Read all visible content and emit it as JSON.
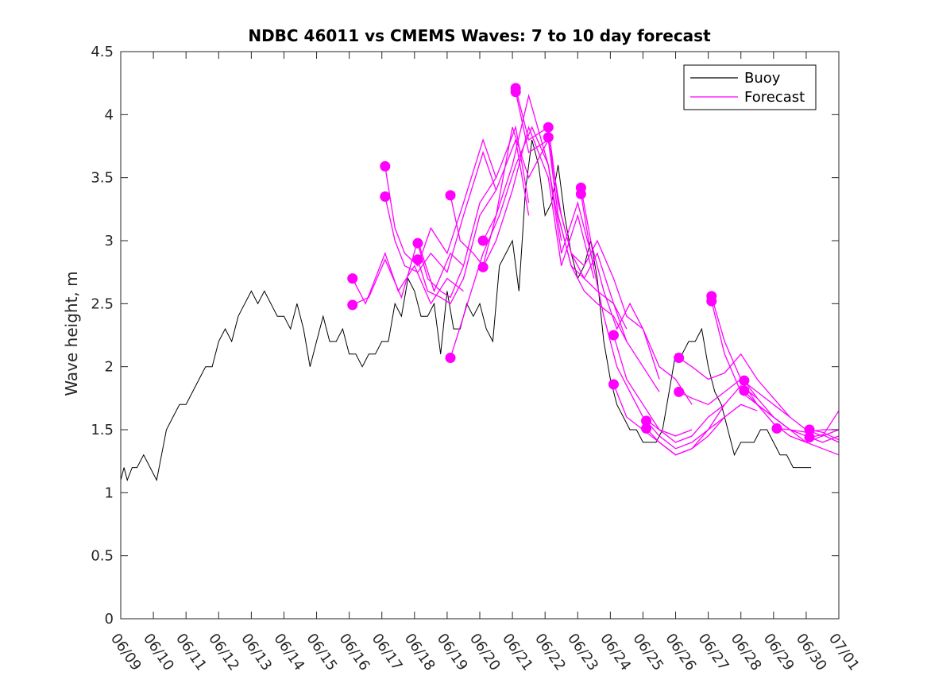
{
  "chart_data": {
    "type": "line",
    "title": "NDBC 46011 vs CMEMS Waves: 7 to 10 day forecast",
    "xlabel": "",
    "ylabel": "Wave height, m",
    "xlim": [
      0,
      22
    ],
    "ylim": [
      0,
      4.5
    ],
    "x_ticks": [
      "06/09",
      "06/10",
      "06/11",
      "06/12",
      "06/13",
      "06/14",
      "06/15",
      "06/16",
      "06/17",
      "06/18",
      "06/19",
      "06/20",
      "06/21",
      "06/22",
      "06/23",
      "06/24",
      "06/25",
      "06/26",
      "06/27",
      "06/28",
      "06/29",
      "06/30",
      "07/01"
    ],
    "y_ticks": [
      "0",
      "0.5",
      "1",
      "1.5",
      "2",
      "2.5",
      "3",
      "3.5",
      "4",
      "4.5"
    ],
    "grid": false,
    "legend": {
      "placement": "top-right",
      "entries": [
        "Buoy",
        "Forecast"
      ]
    },
    "colors": {
      "buoy": "#000000",
      "forecast": "#ff00ff",
      "axes": "#262626"
    },
    "series": [
      {
        "name": "Buoy",
        "x": [
          0,
          0.1,
          0.2,
          0.35,
          0.5,
          0.7,
          0.9,
          1.1,
          1.25,
          1.4,
          1.6,
          1.8,
          2.0,
          2.2,
          2.4,
          2.6,
          2.8,
          3.0,
          3.2,
          3.4,
          3.6,
          3.8,
          4.0,
          4.2,
          4.4,
          4.6,
          4.8,
          5.0,
          5.2,
          5.4,
          5.6,
          5.8,
          6.0,
          6.2,
          6.4,
          6.6,
          6.8,
          7.0,
          7.2,
          7.4,
          7.6,
          7.8,
          8.0,
          8.2,
          8.4,
          8.6,
          8.8,
          9.0,
          9.2,
          9.4,
          9.6,
          9.8,
          10.0,
          10.2,
          10.4,
          10.6,
          10.8,
          11.0,
          11.2,
          11.4,
          11.6,
          11.8,
          12.0,
          12.2,
          12.4,
          12.6,
          12.8,
          13.0,
          13.2,
          13.4,
          13.6,
          13.8,
          14.0,
          14.2,
          14.4,
          14.6,
          14.8,
          15.0,
          15.2,
          15.4,
          15.6,
          15.8,
          16.0,
          16.2,
          16.4,
          16.6,
          16.8,
          17.0,
          17.2,
          17.4,
          17.6,
          17.8,
          18.0,
          18.2,
          18.4,
          18.6,
          18.8,
          19.0,
          19.2,
          19.4,
          19.6,
          19.8,
          20.0,
          20.2,
          20.4,
          20.6,
          20.8,
          21.0,
          21.15
        ],
        "y": [
          1.1,
          1.2,
          1.1,
          1.2,
          1.2,
          1.3,
          1.2,
          1.1,
          1.3,
          1.5,
          1.6,
          1.7,
          1.7,
          1.8,
          1.9,
          2.0,
          2.0,
          2.2,
          2.3,
          2.2,
          2.4,
          2.5,
          2.6,
          2.5,
          2.6,
          2.5,
          2.4,
          2.4,
          2.3,
          2.5,
          2.3,
          2.0,
          2.2,
          2.4,
          2.2,
          2.2,
          2.3,
          2.1,
          2.1,
          2.0,
          2.1,
          2.1,
          2.2,
          2.2,
          2.5,
          2.4,
          2.7,
          2.6,
          2.4,
          2.4,
          2.5,
          2.1,
          2.6,
          2.3,
          2.3,
          2.5,
          2.4,
          2.5,
          2.3,
          2.2,
          2.8,
          2.9,
          3.0,
          2.6,
          3.4,
          3.8,
          3.6,
          3.2,
          3.3,
          3.6,
          3.2,
          2.9,
          2.7,
          2.8,
          3.0,
          2.7,
          2.2,
          1.9,
          1.7,
          1.6,
          1.5,
          1.5,
          1.4,
          1.4,
          1.4,
          1.5,
          1.8,
          2.1,
          2.1,
          2.2,
          2.2,
          2.3,
          2.0,
          1.8,
          1.7,
          1.5,
          1.3,
          1.4,
          1.4,
          1.4,
          1.5,
          1.5,
          1.4,
          1.3,
          1.3,
          1.2,
          1.2,
          1.2,
          1.2
        ]
      },
      {
        "name": "Forecast",
        "x": [
          7.1,
          7.5,
          8.1,
          8.5,
          9.0,
          9.5,
          10.0,
          10.5
        ],
        "y": [
          2.7,
          2.5,
          2.9,
          2.6,
          2.8,
          2.5,
          2.7,
          2.6
        ]
      },
      {
        "name": "Forecast",
        "x": [
          7.1,
          7.6,
          8.1,
          8.6,
          9.1,
          9.6,
          10.1,
          10.5
        ],
        "y": [
          2.49,
          2.55,
          2.85,
          2.55,
          3.0,
          2.6,
          2.9,
          2.8
        ]
      },
      {
        "name": "Forecast",
        "x": [
          8.1,
          8.4,
          8.7,
          9.1,
          9.5,
          10.0,
          10.5,
          11.1,
          11.5
        ],
        "y": [
          3.59,
          3.1,
          2.9,
          2.8,
          3.1,
          2.9,
          3.3,
          3.8,
          3.5
        ]
      },
      {
        "name": "Forecast",
        "x": [
          8.1,
          8.4,
          8.7,
          9.1,
          9.5,
          10.0,
          10.5,
          11.1,
          11.5
        ],
        "y": [
          3.35,
          3.0,
          2.8,
          2.75,
          2.9,
          2.75,
          3.2,
          3.7,
          3.4
        ]
      },
      {
        "name": "Forecast",
        "x": [
          9.1,
          9.4,
          9.8,
          10.1,
          10.5,
          11.0,
          11.5,
          12.1,
          12.5
        ],
        "y": [
          2.98,
          2.7,
          2.6,
          2.55,
          2.8,
          3.3,
          3.5,
          3.9,
          3.3
        ]
      },
      {
        "name": "Forecast",
        "x": [
          9.1,
          9.4,
          9.8,
          10.1,
          10.5,
          11.0,
          11.5,
          12.1,
          12.5
        ],
        "y": [
          2.85,
          2.6,
          2.55,
          2.5,
          2.7,
          3.2,
          3.4,
          3.8,
          3.2
        ]
      },
      {
        "name": "Forecast",
        "x": [
          10.1,
          10.4,
          10.8,
          11.1,
          11.5,
          12.0,
          12.5,
          13.1,
          13.5
        ],
        "y": [
          3.36,
          3.0,
          2.9,
          2.8,
          3.2,
          3.9,
          3.5,
          3.8,
          3.2
        ]
      },
      {
        "name": "Forecast",
        "x": [
          10.1,
          10.5,
          11.1,
          11.6,
          12.1,
          12.6,
          13.1,
          13.5
        ],
        "y": [
          2.07,
          2.4,
          2.9,
          3.2,
          3.6,
          3.9,
          3.6,
          3.0
        ]
      },
      {
        "name": "Forecast",
        "x": [
          11.1,
          11.5,
          12.0,
          12.5,
          13.1,
          13.5,
          14.0,
          14.5
        ],
        "y": [
          3.0,
          3.2,
          3.6,
          4.15,
          3.6,
          2.9,
          3.3,
          2.8
        ]
      },
      {
        "name": "Forecast",
        "x": [
          11.1,
          11.5,
          12.0,
          12.5,
          13.1,
          13.5,
          14.0,
          14.5
        ],
        "y": [
          2.79,
          3.0,
          3.4,
          3.9,
          3.5,
          2.8,
          3.2,
          2.7
        ]
      },
      {
        "name": "Forecast",
        "x": [
          12.1,
          12.5,
          13.1,
          13.4,
          13.8,
          14.2,
          14.6,
          15.1,
          15.5
        ],
        "y": [
          4.21,
          3.8,
          3.9,
          3.3,
          2.9,
          2.7,
          2.6,
          2.5,
          2.3
        ]
      },
      {
        "name": "Forecast",
        "x": [
          12.1,
          12.5,
          13.1,
          13.4,
          13.8,
          14.2,
          14.6,
          15.1,
          15.5
        ],
        "y": [
          4.18,
          3.7,
          3.8,
          3.2,
          2.8,
          2.6,
          2.5,
          2.4,
          2.2
        ]
      },
      {
        "name": "Forecast",
        "x": [
          13.1,
          13.4,
          13.8,
          14.2,
          14.6,
          15.1,
          15.5,
          16.0,
          16.5
        ],
        "y": [
          3.9,
          3.3,
          2.9,
          2.8,
          3.0,
          2.7,
          2.4,
          2.3,
          1.9
        ]
      },
      {
        "name": "Forecast",
        "x": [
          13.1,
          13.4,
          13.8,
          14.2,
          14.6,
          15.1,
          15.5,
          16.0,
          16.5
        ],
        "y": [
          3.82,
          3.2,
          2.8,
          2.7,
          2.9,
          2.5,
          2.2,
          2.0,
          1.8
        ]
      },
      {
        "name": "Forecast",
        "x": [
          14.1,
          14.4,
          14.8,
          15.2,
          15.6,
          16.0,
          16.5,
          17.0,
          17.5
        ],
        "y": [
          3.42,
          3.0,
          2.6,
          2.3,
          2.5,
          2.3,
          2.0,
          1.9,
          1.7
        ]
      },
      {
        "name": "Forecast",
        "x": [
          14.1,
          14.4,
          14.8,
          15.2,
          15.6,
          16.0,
          16.5,
          17.0,
          17.5
        ],
        "y": [
          3.37,
          2.9,
          2.4,
          2.0,
          1.8,
          1.6,
          1.5,
          1.45,
          1.5
        ]
      },
      {
        "name": "Forecast",
        "x": [
          15.1,
          15.5,
          16.0,
          16.5,
          17.0,
          17.5,
          18.0,
          18.5
        ],
        "y": [
          2.25,
          1.9,
          1.7,
          1.5,
          1.4,
          1.45,
          1.6,
          1.7
        ]
      },
      {
        "name": "Forecast",
        "x": [
          15.1,
          15.5,
          16.0,
          16.5,
          17.0,
          17.5,
          18.0,
          18.5
        ],
        "y": [
          1.86,
          1.6,
          1.5,
          1.4,
          1.3,
          1.35,
          1.5,
          1.6
        ]
      },
      {
        "name": "Forecast",
        "x": [
          16.1,
          16.5,
          17.0,
          17.5,
          18.0,
          18.5,
          19.0,
          19.5
        ],
        "y": [
          1.57,
          1.45,
          1.35,
          1.4,
          1.5,
          1.7,
          1.85,
          1.75
        ]
      },
      {
        "name": "Forecast",
        "x": [
          16.1,
          16.5,
          17.0,
          17.5,
          18.0,
          18.5,
          19.0,
          19.5
        ],
        "y": [
          1.51,
          1.4,
          1.3,
          1.35,
          1.45,
          1.6,
          1.7,
          1.65
        ]
      },
      {
        "name": "Forecast",
        "x": [
          17.1,
          17.5,
          18.0,
          18.5,
          19.0,
          19.5,
          20.0,
          20.5
        ],
        "y": [
          2.07,
          2.0,
          1.9,
          1.95,
          2.1,
          1.9,
          1.75,
          1.6
        ]
      },
      {
        "name": "Forecast",
        "x": [
          17.1,
          17.5,
          18.0,
          18.5,
          19.0,
          19.5,
          20.0,
          20.5
        ],
        "y": [
          1.8,
          1.75,
          1.7,
          1.8,
          1.9,
          1.7,
          1.6,
          1.5
        ]
      },
      {
        "name": "Forecast",
        "x": [
          18.1,
          18.5,
          19.0,
          19.5,
          20.0,
          20.5,
          21.0,
          21.5,
          22.0
        ],
        "y": [
          2.56,
          2.2,
          1.9,
          1.8,
          1.7,
          1.6,
          1.5,
          1.45,
          1.5
        ]
      },
      {
        "name": "Forecast",
        "x": [
          18.1,
          18.5,
          19.0,
          19.5,
          20.0,
          20.5,
          21.0,
          21.5,
          22.0
        ],
        "y": [
          2.52,
          2.1,
          1.8,
          1.7,
          1.6,
          1.5,
          1.4,
          1.35,
          1.3
        ]
      },
      {
        "name": "Forecast",
        "x": [
          19.1,
          19.5,
          20.0,
          20.5,
          21.0,
          21.5,
          22.0
        ],
        "y": [
          1.89,
          1.75,
          1.6,
          1.5,
          1.45,
          1.4,
          1.45
        ]
      },
      {
        "name": "Forecast",
        "x": [
          19.1,
          19.5,
          20.0,
          20.5,
          21.0,
          21.5,
          22.0
        ],
        "y": [
          1.81,
          1.7,
          1.55,
          1.45,
          1.4,
          1.45,
          1.65
        ]
      },
      {
        "name": "Forecast",
        "x": [
          20.1,
          20.5,
          21.0,
          21.5,
          22.0
        ],
        "y": [
          1.51,
          1.5,
          1.48,
          1.5,
          1.5
        ]
      },
      {
        "name": "Forecast",
        "x": [
          21.1,
          21.5,
          22.0
        ],
        "y": [
          1.5,
          1.48,
          1.42
        ]
      },
      {
        "name": "Forecast",
        "x": [
          21.1,
          21.5,
          22.0
        ],
        "y": [
          1.44,
          1.46,
          1.4
        ]
      }
    ]
  }
}
